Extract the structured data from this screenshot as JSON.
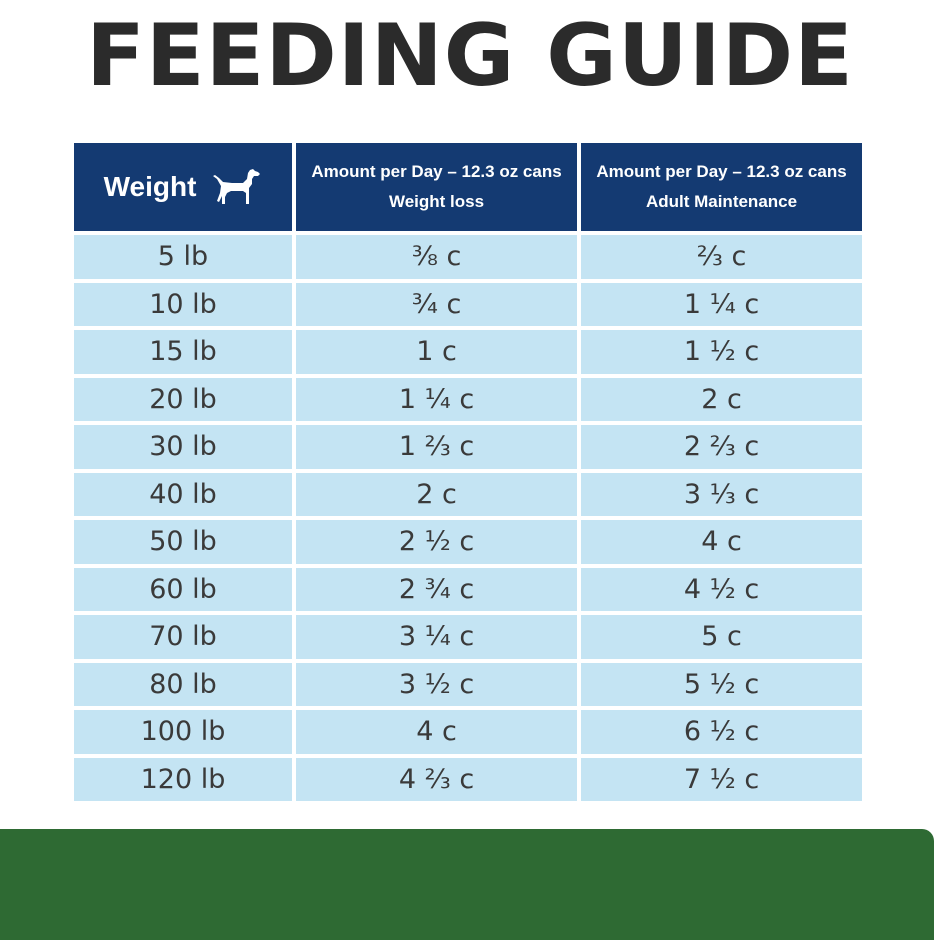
{
  "title": "FEEDING GUIDE",
  "table": {
    "headers": {
      "weight": "Weight",
      "weight_icon": "dog-icon",
      "loss_line1": "Amount per Day – 12.3 oz cans",
      "loss_line2": "Weight loss",
      "maint_line1": "Amount per Day – 12.3 oz cans",
      "maint_line2": "Adult Maintenance"
    },
    "rows": [
      {
        "weight": "5 lb",
        "loss": "⅜ c",
        "maint": "⅔ c"
      },
      {
        "weight": "10 lb",
        "loss": "¾ c",
        "maint": "1 ¼ c"
      },
      {
        "weight": "15 lb",
        "loss": "1 c",
        "maint": "1 ½ c"
      },
      {
        "weight": "20 lb",
        "loss": "1 ¼ c",
        "maint": "2 c"
      },
      {
        "weight": "30 lb",
        "loss": "1 ⅔ c",
        "maint": "2 ⅔ c"
      },
      {
        "weight": "40 lb",
        "loss": "2 c",
        "maint": "3 ⅓ c"
      },
      {
        "weight": "50 lb",
        "loss": "2 ½ c",
        "maint": "4 c"
      },
      {
        "weight": "60 lb",
        "loss": "2 ¾ c",
        "maint": "4 ½ c"
      },
      {
        "weight": "70 lb",
        "loss": "3 ¼ c",
        "maint": "5 c"
      },
      {
        "weight": "80 lb",
        "loss": "3 ½ c",
        "maint": "5 ½ c"
      },
      {
        "weight": "100 lb",
        "loss": "4 c",
        "maint": "6 ½ c"
      },
      {
        "weight": "120 lb",
        "loss": "4 ⅔ c",
        "maint": "7 ½ c"
      }
    ]
  },
  "colors": {
    "header_bg": "#143a72",
    "cell_bg": "#c4e4f3",
    "band": "#2e6a33",
    "title": "#2b2b2b"
  }
}
